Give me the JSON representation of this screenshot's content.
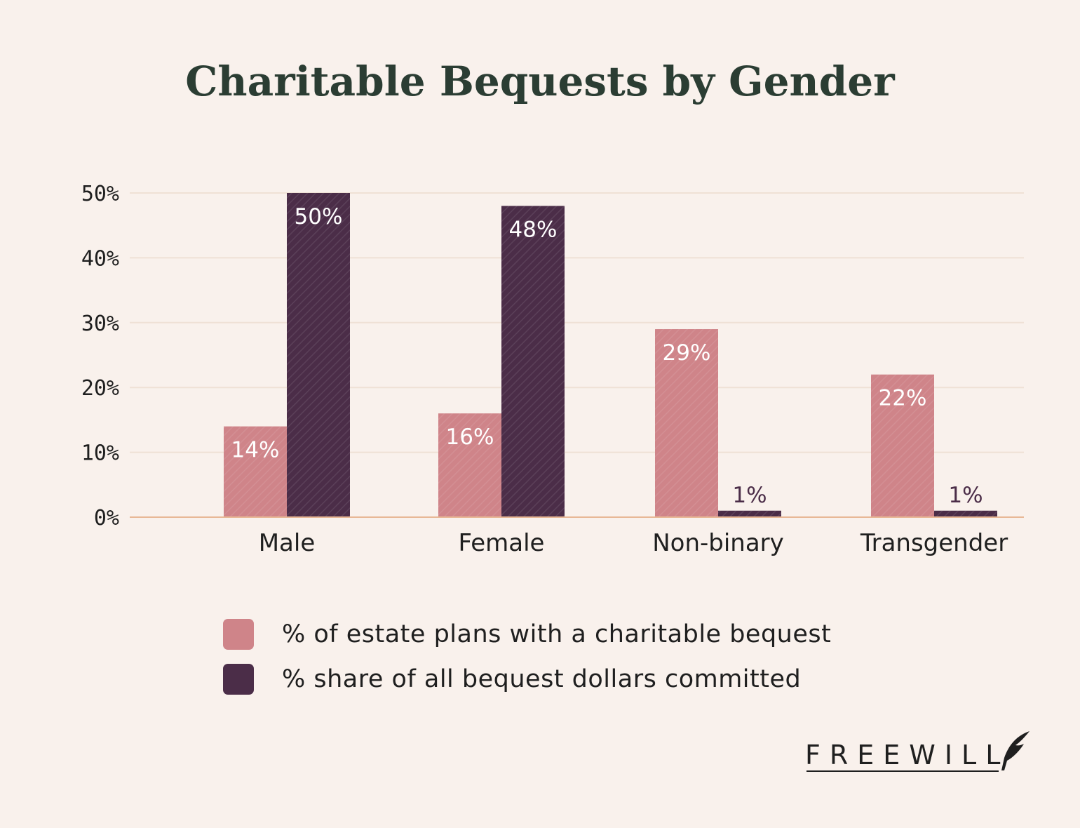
{
  "chart_data": {
    "type": "bar",
    "title": "Charitable Bequests by Gender",
    "categories": [
      "Male",
      "Female",
      "Non-binary",
      "Transgender"
    ],
    "series": [
      {
        "name": "% of estate plans with a charitable bequest",
        "values": [
          14,
          16,
          29,
          22
        ],
        "labels": [
          "14%",
          "16%",
          "29%",
          "22%"
        ],
        "color": "#cf8489"
      },
      {
        "name": "% share of all bequest dollars committed",
        "values": [
          50,
          48,
          1,
          1
        ],
        "labels": [
          "50%",
          "48%",
          "1%",
          "1%"
        ],
        "color": "#4b2d48"
      }
    ],
    "ylim": [
      0,
      50
    ],
    "yticks": [
      0,
      10,
      20,
      30,
      40,
      50
    ],
    "ytick_labels": [
      "0%",
      "10%",
      "20%",
      "30%",
      "40%",
      "50%"
    ],
    "xlabel": "",
    "ylabel": "",
    "grid": true,
    "legend_position": "bottom"
  },
  "brand": {
    "logo_text": "FREEWILL",
    "logo_icon": "quill-icon"
  },
  "colors": {
    "background": "#f9f1ec",
    "title": "#2b3d33",
    "gridline": "#efe1d5",
    "baseline": "#e8b896"
  }
}
